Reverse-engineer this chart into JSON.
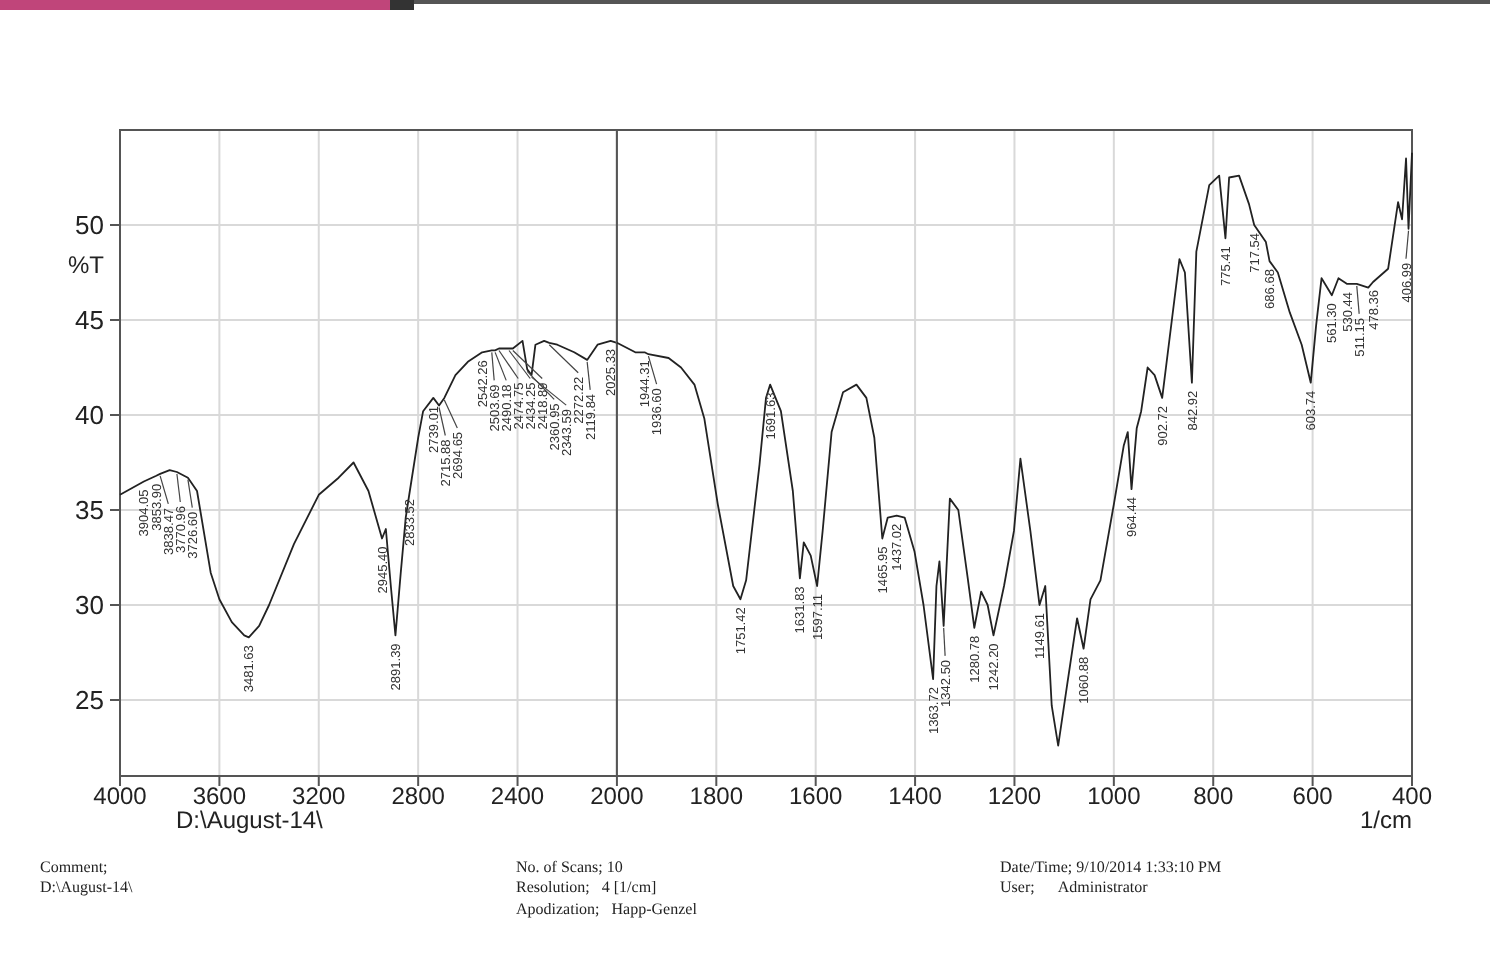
{
  "chart_data": [
    {
      "type": "line",
      "ylabel": "%T",
      "x": [
        4000,
        3904.05,
        3853.9,
        3838.47,
        3800,
        3770.96,
        3726.6,
        3690,
        3635,
        3600,
        3550,
        3500,
        3481.63,
        3440,
        3400,
        3300,
        3200,
        3120,
        3060,
        3000,
        2945.4,
        2930,
        2910,
        2891.39,
        2870,
        2850,
        2833.52,
        2800,
        2780,
        2739.01,
        2715.88,
        2694.65,
        2650,
        2600,
        2542.26,
        2503.69,
        2490.18,
        2474.75,
        2434.25,
        2418.89,
        2380,
        2360.95,
        2343.59,
        2328,
        2293,
        2272.22,
        2240,
        2172,
        2119.84,
        2078,
        2025.33,
        2000
      ],
      "series": [
        {
          "color": "#222222",
          "values": [
            35.8,
            36.5,
            36.8,
            36.9,
            37.1,
            37.0,
            36.7,
            36.0,
            31.7,
            30.3,
            29.1,
            28.4,
            28.3,
            28.9,
            30.0,
            33.2,
            35.8,
            36.7,
            37.5,
            36.0,
            33.5,
            34.0,
            31.0,
            28.4,
            31.7,
            34.6,
            36.0,
            38.8,
            40.2,
            40.9,
            40.5,
            40.9,
            42.1,
            42.8,
            43.3,
            43.4,
            43.4,
            43.5,
            43.5,
            43.5,
            43.9,
            42.4,
            42.1,
            43.7,
            43.9,
            43.8,
            43.7,
            43.3,
            42.9,
            43.7,
            43.9,
            43.8
          ]
        }
      ],
      "xlim": [
        4000,
        2000
      ],
      "xticks": [
        4000,
        3600,
        3200,
        2800,
        2400
      ],
      "ylim": [
        21,
        55
      ],
      "yticks": [
        25,
        30,
        35,
        40,
        45,
        50
      ],
      "grid": true,
      "marker": "none",
      "line_style": "solid",
      "annotations": [
        {
          "text": "3904.05",
          "x": 3904.05,
          "y": 36.5
        },
        {
          "text": "3853.90",
          "x": 3853.9,
          "y": 36.8
        },
        {
          "text": "3838.47",
          "x": 3838.47,
          "y": 36.9
        },
        {
          "text": "3770.96",
          "x": 3770.96,
          "y": 37.0
        },
        {
          "text": "3726.60",
          "x": 3726.6,
          "y": 36.7
        },
        {
          "text": "3481.63",
          "x": 3481.63,
          "y": 28.3
        },
        {
          "text": "2945.40",
          "x": 2945.4,
          "y": 33.5
        },
        {
          "text": "2891.39",
          "x": 2891.39,
          "y": 28.4
        },
        {
          "text": "2833.52",
          "x": 2833.52,
          "y": 36.0
        },
        {
          "text": "2739.01",
          "x": 2739.01,
          "y": 40.9
        },
        {
          "text": "2715.88",
          "x": 2715.88,
          "y": 40.5
        },
        {
          "text": "2694.65",
          "x": 2694.65,
          "y": 40.9
        },
        {
          "text": "2542.26",
          "x": 2542.26,
          "y": 43.3
        },
        {
          "text": "2503.69",
          "x": 2503.69,
          "y": 43.4
        },
        {
          "text": "2490.18",
          "x": 2490.18,
          "y": 43.4
        },
        {
          "text": "2474.75",
          "x": 2474.75,
          "y": 43.5
        },
        {
          "text": "2434.25",
          "x": 2434.25,
          "y": 43.5
        },
        {
          "text": "2418.89",
          "x": 2418.89,
          "y": 43.5
        },
        {
          "text": "2360.95",
          "x": 2360.95,
          "y": 42.4
        },
        {
          "text": "2343.59",
          "x": 2343.59,
          "y": 42.1
        },
        {
          "text": "2272.22",
          "x": 2272.22,
          "y": 43.8
        },
        {
          "text": "2119.84",
          "x": 2119.84,
          "y": 42.9
        },
        {
          "text": "2025.33",
          "x": 2025.33,
          "y": 43.9
        },
        "D:\\August-14\\",
        "Comment;",
        "D:\\August-14\\",
        "No. of Scans; 10",
        "Resolution;   4 [1/cm]",
        "Apodization;   Happ-Genzel",
        "Date/Time; 9/10/2014 1:33:10 PM",
        "User;      Administrator"
      ]
    },
    {
      "type": "line",
      "xlabel": "1/cm",
      "tick_labels": "x",
      "x": [
        2000,
        1963,
        1944.31,
        1936.6,
        1896,
        1871,
        1844,
        1824,
        1797,
        1766,
        1751.42,
        1740,
        1713,
        1700,
        1691.63,
        1670,
        1646,
        1631.83,
        1624,
        1610,
        1597.11,
        1586,
        1568,
        1545,
        1518,
        1498,
        1482,
        1465.95,
        1455,
        1437.02,
        1421,
        1401,
        1383,
        1363.72,
        1357,
        1351,
        1342.5,
        1330,
        1313,
        1294,
        1280.78,
        1267,
        1254,
        1242.2,
        1221,
        1201,
        1188,
        1168,
        1149.61,
        1138,
        1125,
        1112,
        1094,
        1074,
        1060.88,
        1047,
        1027,
        1000,
        980,
        972,
        964.44,
        954,
        945,
        932,
        918,
        902.72,
        888,
        868,
        857,
        842.92,
        834,
        808,
        788,
        775.41,
        768,
        748,
        728,
        717.54,
        694,
        686.68,
        670,
        646,
        622,
        603.74,
        593,
        582,
        561.3,
        548,
        530.44,
        511.15,
        488,
        478.36,
        448,
        428,
        420,
        412,
        406.99,
        400
      ],
      "series": [
        {
          "color": "#222222",
          "values": [
            43.8,
            43.3,
            43.3,
            43.2,
            43.0,
            42.5,
            41.6,
            39.8,
            35.3,
            31.0,
            30.3,
            31.3,
            37.4,
            40.9,
            41.6,
            40.2,
            36.0,
            31.4,
            33.3,
            32.6,
            31.0,
            33.9,
            39.1,
            41.2,
            41.6,
            40.9,
            38.8,
            33.5,
            34.6,
            34.7,
            34.6,
            32.8,
            30.0,
            26.1,
            31.0,
            32.3,
            28.9,
            35.6,
            35.0,
            31.4,
            28.8,
            30.7,
            30.0,
            28.4,
            31.0,
            33.9,
            37.7,
            33.9,
            30.0,
            31.0,
            24.7,
            22.6,
            25.8,
            29.3,
            27.7,
            30.3,
            31.3,
            35.3,
            38.4,
            39.1,
            36.1,
            39.3,
            40.2,
            42.5,
            42.1,
            40.9,
            44.0,
            48.2,
            47.5,
            41.7,
            48.6,
            52.1,
            52.6,
            49.3,
            52.5,
            52.6,
            51.1,
            50.0,
            49.1,
            48.1,
            47.5,
            45.4,
            43.7,
            41.7,
            44.7,
            47.2,
            46.3,
            47.2,
            46.9,
            46.9,
            46.7,
            47.0,
            47.7,
            51.2,
            50.3,
            53.5,
            49.8,
            53.8
          ]
        }
      ],
      "xlim": [
        2000,
        400
      ],
      "xticks": [
        2000,
        1800,
        1600,
        1400,
        1200,
        1000,
        800,
        600,
        400
      ],
      "ylim": [
        21,
        55
      ],
      "yticks": [
        25,
        30,
        35,
        40,
        45,
        50
      ],
      "grid": true,
      "marker": "none",
      "line_style": "solid",
      "annotations": [
        {
          "text": "1944.31",
          "x": 1944.31,
          "y": 43.3
        },
        {
          "text": "1936.60",
          "x": 1936.6,
          "y": 43.2
        },
        {
          "text": "1751.42",
          "x": 1751.42,
          "y": 30.3
        },
        {
          "text": "1691.63",
          "x": 1691.63,
          "y": 41.6
        },
        {
          "text": "1631.83",
          "x": 1631.83,
          "y": 31.4
        },
        {
          "text": "1597.11",
          "x": 1597.11,
          "y": 31.0
        },
        {
          "text": "1465.95",
          "x": 1465.95,
          "y": 33.5
        },
        {
          "text": "1437.02",
          "x": 1437.02,
          "y": 34.7
        },
        {
          "text": "1363.72",
          "x": 1363.72,
          "y": 26.1
        },
        {
          "text": "1342.50",
          "x": 1342.5,
          "y": 28.9
        },
        {
          "text": "1280.78",
          "x": 1280.78,
          "y": 28.8
        },
        {
          "text": "1242.20",
          "x": 1242.2,
          "y": 28.4
        },
        {
          "text": "1149.61",
          "x": 1149.61,
          "y": 30.0
        },
        {
          "text": "1060.88",
          "x": 1060.88,
          "y": 27.7
        },
        {
          "text": "964.44",
          "x": 964.44,
          "y": 36.1
        },
        {
          "text": "902.72",
          "x": 902.72,
          "y": 40.9
        },
        {
          "text": "842.92",
          "x": 842.92,
          "y": 41.7
        },
        {
          "text": "775.41",
          "x": 775.41,
          "y": 49.3
        },
        {
          "text": "717.54",
          "x": 717.54,
          "y": 50.0
        },
        {
          "text": "686.68",
          "x": 686.68,
          "y": 48.1
        },
        {
          "text": "603.74",
          "x": 603.74,
          "y": 41.7
        },
        {
          "text": "561.30",
          "x": 561.3,
          "y": 46.3
        },
        {
          "text": "530.44",
          "x": 530.44,
          "y": 46.9
        },
        {
          "text": "511.15",
          "x": 511.15,
          "y": 46.9
        },
        {
          "text": "478.36",
          "x": 478.36,
          "y": 47.0
        },
        {
          "text": "406.99",
          "x": 406.99,
          "y": 49.8
        }
      ]
    }
  ]
}
